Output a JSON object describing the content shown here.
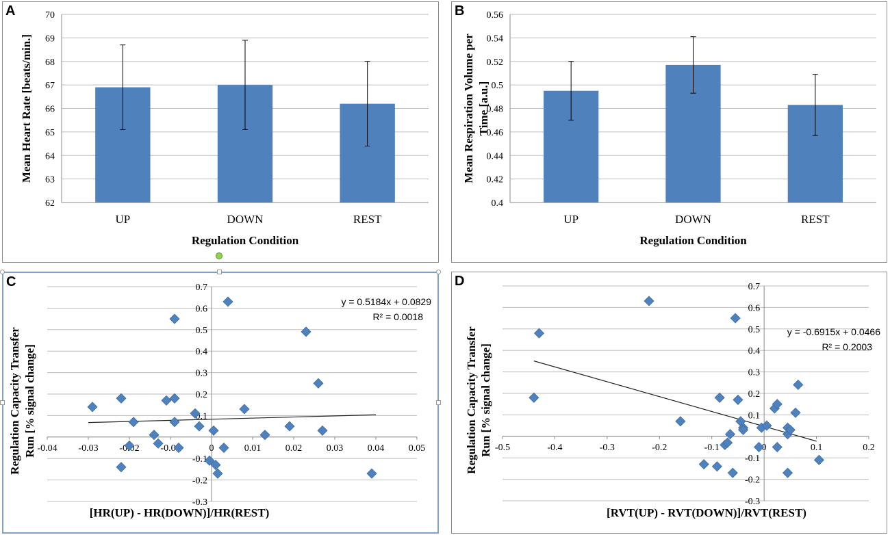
{
  "chart_data": [
    {
      "panel": "A",
      "type": "bar",
      "categories": [
        "UP",
        "DOWN",
        "REST"
      ],
      "values": [
        66.9,
        67.0,
        66.2
      ],
      "error": [
        1.8,
        1.9,
        1.8
      ],
      "ylim": [
        62,
        70
      ],
      "yticks": [
        "62",
        "63",
        "64",
        "65",
        "66",
        "67",
        "68",
        "69",
        "70"
      ],
      "ylabel": "Mean Heart Rate [beats/min.]",
      "xlabel": "Regulation Condition",
      "bar_color": "#4f81bd"
    },
    {
      "panel": "B",
      "type": "bar",
      "categories": [
        "UP",
        "DOWN",
        "REST"
      ],
      "values": [
        0.495,
        0.517,
        0.483
      ],
      "error": [
        0.025,
        0.024,
        0.026
      ],
      "ylim": [
        0.4,
        0.56
      ],
      "yticks": [
        "0.4",
        "0.42",
        "0.44",
        "0.46",
        "0.48",
        "0.5",
        "0.52",
        "0.54",
        "0.56"
      ],
      "ylabel_line1": "Mean Respiration Volume per",
      "ylabel_line2": "Time [a.u.]",
      "xlabel": "Regulation Condition",
      "bar_color": "#4f81bd"
    },
    {
      "panel": "C",
      "type": "scatter",
      "x": [
        -0.029,
        -0.022,
        -0.022,
        -0.02,
        -0.019,
        -0.014,
        -0.013,
        -0.011,
        -0.009,
        -0.009,
        -0.009,
        -0.008,
        -0.004,
        -0.003,
        -0.0005,
        0.0005,
        0.001,
        0.0015,
        0.003,
        0.004,
        0.008,
        0.013,
        0.019,
        0.023,
        0.026,
        0.027,
        0.039
      ],
      "y": [
        0.14,
        0.18,
        -0.14,
        -0.04,
        0.07,
        0.01,
        -0.03,
        0.17,
        0.55,
        0.18,
        0.07,
        -0.05,
        0.11,
        0.05,
        -0.11,
        0.03,
        -0.13,
        -0.17,
        -0.05,
        0.63,
        0.13,
        0.01,
        0.05,
        0.49,
        0.25,
        0.03,
        -0.17
      ],
      "trendline": {
        "slope": 0.5184,
        "intercept": 0.0829,
        "x_range": [
          -0.03,
          0.04
        ]
      },
      "equation": "y = 0.5184x + 0.0829",
      "r2": "R² = 0.0018",
      "xlim": [
        -0.04,
        0.05
      ],
      "ylim": [
        -0.3,
        0.7
      ],
      "xticks": [
        "-0.04",
        "-0.03",
        "-0.02",
        "-0.01",
        "0",
        "0.01",
        "0.02",
        "0.03",
        "0.04",
        "0.05"
      ],
      "yticks": [
        "-0.3",
        "-0.2",
        "-0.1",
        "0",
        "0.1",
        "0.2",
        "0.3",
        "0.4",
        "0.5",
        "0.6",
        "0.7"
      ],
      "ylabel_line1": "Regulation Capacity Transfer",
      "ylabel_line2": "Run [% signal change]",
      "xlabel": "[HR(UP) - HR(DOWN)]/HR(REST)",
      "marker_color": "#4f81bd"
    },
    {
      "panel": "D",
      "type": "scatter",
      "x": [
        -0.44,
        -0.43,
        -0.22,
        -0.16,
        -0.115,
        -0.09,
        -0.085,
        -0.075,
        -0.07,
        -0.065,
        -0.06,
        -0.055,
        -0.05,
        -0.045,
        -0.04,
        -0.04,
        -0.01,
        -0.005,
        0.005,
        0.02,
        0.025,
        0.025,
        0.045,
        0.045,
        0.045,
        0.05,
        0.06,
        0.065,
        0.105
      ],
      "y": [
        0.18,
        0.48,
        0.63,
        0.07,
        -0.13,
        -0.14,
        0.18,
        -0.04,
        -0.03,
        0.01,
        -0.17,
        0.55,
        0.17,
        0.07,
        0.04,
        0.03,
        -0.05,
        0.04,
        0.05,
        0.13,
        0.15,
        -0.05,
        0.04,
        0.01,
        -0.17,
        0.03,
        0.11,
        0.24,
        -0.11
      ],
      "trendline": {
        "slope": -0.6915,
        "intercept": 0.0466,
        "x_range": [
          -0.44,
          0.1
        ]
      },
      "equation": "y = -0.6915x + 0.0466",
      "r2": "R² = 0.2003",
      "xlim": [
        -0.5,
        0.2
      ],
      "ylim": [
        -0.3,
        0.7
      ],
      "xticks": [
        "-0.5",
        "-0.4",
        "-0.3",
        "-0.2",
        "-0.1",
        "0",
        "0.1",
        "0.2"
      ],
      "yticks": [
        "-0.3",
        "-0.2",
        "-0.1",
        "0",
        "0.1",
        "0.2",
        "0.3",
        "0.4",
        "0.5",
        "0.6",
        "0.7"
      ],
      "ylabel_line1": "Regulation Capacity Transfer",
      "ylabel_line2": "Run [% signal change]",
      "xlabel": "[RVT(UP) - RVT(DOWN)]/RVT(REST)",
      "marker_color": "#4f81bd"
    }
  ],
  "panels": {
    "a": "A",
    "b": "B",
    "c": "C",
    "d": "D"
  }
}
